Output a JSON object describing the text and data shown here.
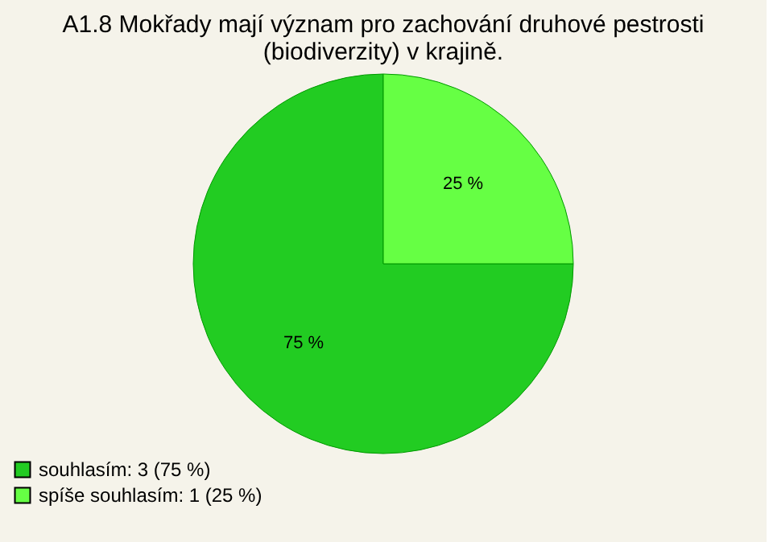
{
  "chart_data": {
    "type": "pie",
    "title": [
      "A1.8 Mokřady mají význam pro zachování druhové pestrosti",
      "(biodiverzity) v krajině."
    ],
    "categories": [
      "souhlasím: 3 (75 %)",
      "spíše souhlasím: 1 (25 %)"
    ],
    "values": [
      75,
      25
    ],
    "colors": [
      "#22cc22",
      "#66ff44"
    ],
    "value_labels": [
      "75 %",
      "25 %"
    ],
    "legend": "bottom left"
  }
}
